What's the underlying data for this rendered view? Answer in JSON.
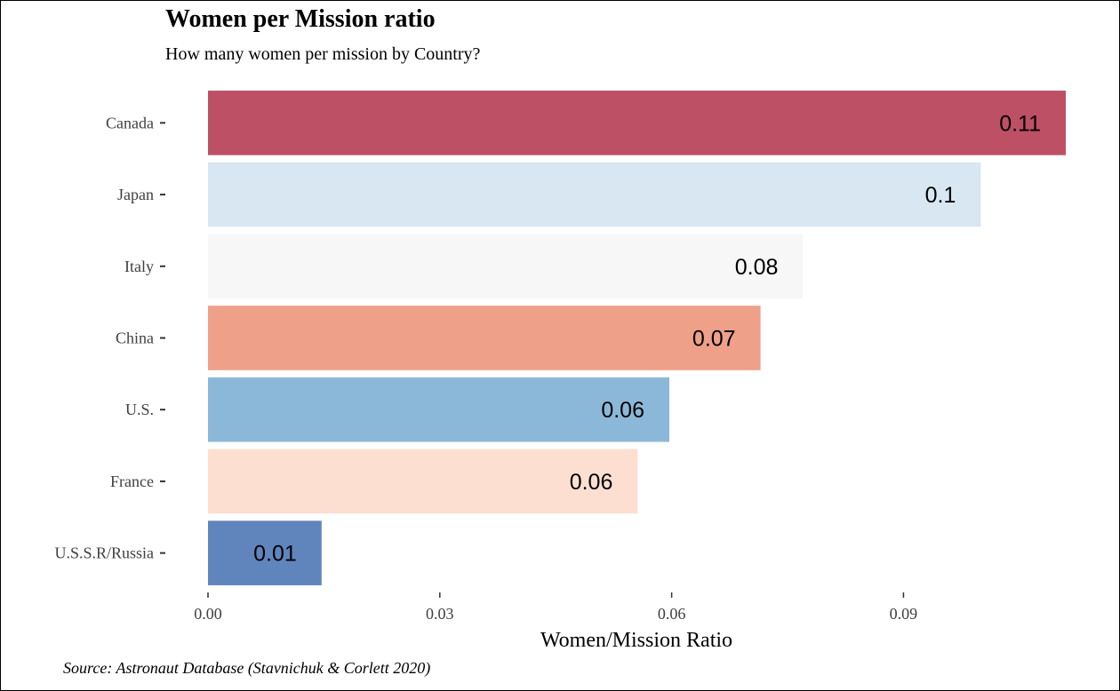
{
  "title": "Women per Mission ratio",
  "subtitle": "How many women per mission by Country?",
  "caption": "Source: Astronaut Database (Stavnichuk & Corlett 2020)",
  "chart_data": {
    "type": "bar",
    "orientation": "horizontal",
    "title": "Women per Mission ratio",
    "subtitle": "How many women per mission by Country?",
    "xlabel": "Women/Mission Ratio",
    "ylabel": "",
    "categories": [
      "Canada",
      "Japan",
      "Italy",
      "China",
      "U.S.",
      "France",
      "U.S.S.R/Russia"
    ],
    "values": [
      0.111,
      0.1,
      0.077,
      0.0715,
      0.0597,
      0.0556,
      0.0147
    ],
    "data_labels": [
      "0.11",
      "0.1",
      "0.08",
      "0.07",
      "0.06",
      "0.06",
      "0.01"
    ],
    "colors": [
      "#be5065",
      "#d8e7f2",
      "#f7f7f7",
      "#eea088",
      "#8bb8d8",
      "#fddfd2",
      "#6085bd"
    ],
    "xlim": [
      0,
      0.111
    ],
    "xticks": [
      0,
      0.03,
      0.06,
      0.09
    ],
    "xtick_labels": [
      "0.00",
      "0.03",
      "0.06",
      "0.09"
    ],
    "grid": false,
    "legend": "none"
  }
}
